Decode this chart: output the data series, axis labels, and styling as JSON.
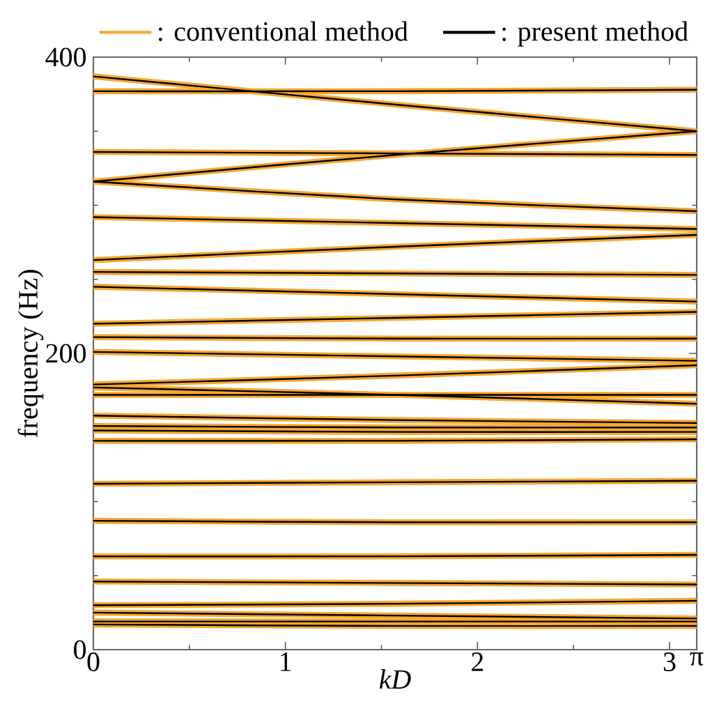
{
  "chart_data": {
    "type": "line",
    "xlabel": "kD",
    "ylabel": "frequency (Hz)",
    "xlim": [
      0,
      3.1416
    ],
    "ylim": [
      0,
      400
    ],
    "xticks": [
      0,
      {
        "value": 0.5,
        "label": null
      },
      1,
      {
        "value": 1.5,
        "label": null
      },
      2,
      {
        "value": 2.5,
        "label": null
      },
      3,
      {
        "value": 3.1416,
        "label": "π"
      }
    ],
    "yticks": [
      0,
      {
        "value": 50,
        "label": null
      },
      {
        "value": 100,
        "label": null
      },
      {
        "value": 150,
        "label": null
      },
      200,
      {
        "value": 250,
        "label": null
      },
      {
        "value": 300,
        "label": null
      },
      {
        "value": 350,
        "label": null
      },
      400
    ],
    "grid": false,
    "legend": "top",
    "marker": "none",
    "line_style": "solid",
    "x": [
      0,
      1.5708,
      3.1416
    ],
    "series": [
      {
        "name": ": conventional method",
        "color": "#f5a733",
        "values": [
          387,
          368,
          350
        ]
      },
      {
        "color": "#f5a733",
        "values": [
          377,
          377,
          378
        ]
      },
      {
        "color": "#f5a733",
        "values": [
          336,
          335,
          334
        ]
      },
      {
        "color": "#f5a733",
        "values": [
          316,
          334,
          350
        ]
      },
      {
        "color": "#f5a733",
        "values": [
          316,
          304,
          296
        ]
      },
      {
        "color": "#f5a733",
        "values": [
          292,
          288,
          284
        ]
      },
      {
        "color": "#f5a733",
        "values": [
          263,
          272,
          280
        ]
      },
      {
        "color": "#f5a733",
        "values": [
          255,
          254,
          253
        ]
      },
      {
        "color": "#f5a733",
        "values": [
          245,
          240,
          235
        ]
      },
      {
        "color": "#f5a733",
        "values": [
          220,
          224,
          228
        ]
      },
      {
        "color": "#f5a733",
        "values": [
          211,
          210,
          210
        ]
      },
      {
        "color": "#f5a733",
        "values": [
          201,
          198,
          195
        ]
      },
      {
        "color": "#f5a733",
        "values": [
          179,
          185,
          192
        ]
      },
      {
        "color": "#f5a733",
        "values": [
          177,
          172,
          166
        ]
      },
      {
        "color": "#f5a733",
        "values": [
          172,
          172,
          172
        ]
      },
      {
        "color": "#f5a733",
        "values": [
          158,
          155,
          153
        ]
      },
      {
        "color": "#f5a733",
        "values": [
          151,
          150,
          150
        ]
      },
      {
        "color": "#f5a733",
        "values": [
          148,
          147,
          147
        ]
      },
      {
        "color": "#f5a733",
        "values": [
          141,
          141,
          142
        ]
      },
      {
        "color": "#f5a733",
        "values": [
          112,
          113,
          114
        ]
      },
      {
        "color": "#f5a733",
        "values": [
          87,
          86,
          86
        ]
      },
      {
        "color": "#f5a733",
        "values": [
          63,
          63,
          64
        ]
      },
      {
        "color": "#f5a733",
        "values": [
          46,
          45,
          44
        ]
      },
      {
        "color": "#f5a733",
        "values": [
          30,
          31,
          33
        ]
      },
      {
        "color": "#f5a733",
        "values": [
          25,
          23,
          21
        ]
      },
      {
        "color": "#f5a733",
        "values": [
          19,
          19,
          19
        ]
      },
      {
        "color": "#f5a733",
        "values": [
          17,
          16,
          16
        ]
      },
      {
        "name": ": present method",
        "color": "#000000",
        "values": [
          387,
          368,
          350
        ]
      },
      {
        "color": "#000000",
        "values": [
          377,
          377,
          378
        ]
      },
      {
        "color": "#000000",
        "values": [
          336,
          335,
          334
        ]
      },
      {
        "color": "#000000",
        "values": [
          316,
          334,
          350
        ]
      },
      {
        "color": "#000000",
        "values": [
          316,
          304,
          296
        ]
      },
      {
        "color": "#000000",
        "values": [
          292,
          288,
          284
        ]
      },
      {
        "color": "#000000",
        "values": [
          263,
          272,
          280
        ]
      },
      {
        "color": "#000000",
        "values": [
          255,
          254,
          253
        ]
      },
      {
        "color": "#000000",
        "values": [
          245,
          240,
          235
        ]
      },
      {
        "color": "#000000",
        "values": [
          220,
          224,
          228
        ]
      },
      {
        "color": "#000000",
        "values": [
          211,
          210,
          210
        ]
      },
      {
        "color": "#000000",
        "values": [
          201,
          198,
          195
        ]
      },
      {
        "color": "#000000",
        "values": [
          179,
          185,
          192
        ]
      },
      {
        "color": "#000000",
        "values": [
          177,
          172,
          166
        ]
      },
      {
        "color": "#000000",
        "values": [
          172,
          172,
          172
        ]
      },
      {
        "color": "#000000",
        "values": [
          158,
          155,
          153
        ]
      },
      {
        "color": "#000000",
        "values": [
          151,
          150,
          150
        ]
      },
      {
        "color": "#000000",
        "values": [
          148,
          147,
          147
        ]
      },
      {
        "color": "#000000",
        "values": [
          141,
          141,
          142
        ]
      },
      {
        "color": "#000000",
        "values": [
          112,
          113,
          114
        ]
      },
      {
        "color": "#000000",
        "values": [
          87,
          86,
          86
        ]
      },
      {
        "color": "#000000",
        "values": [
          63,
          63,
          64
        ]
      },
      {
        "color": "#000000",
        "values": [
          46,
          45,
          44
        ]
      },
      {
        "color": "#000000",
        "values": [
          30,
          31,
          33
        ]
      },
      {
        "color": "#000000",
        "values": [
          25,
          23,
          21
        ]
      },
      {
        "color": "#000000",
        "values": [
          19,
          19,
          19
        ]
      },
      {
        "color": "#000000",
        "values": [
          17,
          16,
          16
        ]
      }
    ]
  }
}
